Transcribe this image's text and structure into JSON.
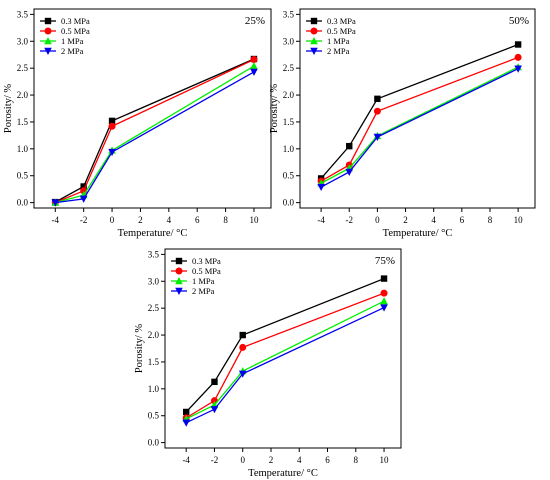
{
  "chart_data": [
    {
      "type": "line",
      "panel_label": "25%",
      "xlabel": "Temperature/ °C",
      "ylabel": "Porosity/ %",
      "x": [
        -4,
        -2,
        0,
        10
      ],
      "x_ticks": [
        "-4",
        "-2",
        "0",
        "2",
        "4",
        "6",
        "8",
        "10"
      ],
      "y_ticks": [
        "0.0",
        "0.5",
        "1.0",
        "1.5",
        "2.0",
        "2.5",
        "3.0",
        "3.5"
      ],
      "xlim": [
        -5.5,
        11.2
      ],
      "ylim": [
        -0.1,
        3.6
      ],
      "legend_position": "top-left",
      "series": [
        {
          "name": "0.3 MPa",
          "values": [
            0.01,
            0.3,
            1.52,
            2.67
          ],
          "color": "#000000",
          "marker": "square"
        },
        {
          "name": "0.5 MPa",
          "values": [
            0.0,
            0.22,
            1.42,
            2.66
          ],
          "color": "#ff0000",
          "marker": "circle"
        },
        {
          "name": "1 MPa",
          "values": [
            0.0,
            0.14,
            0.97,
            2.54
          ],
          "color": "#00ee00",
          "marker": "triangle-up"
        },
        {
          "name": "2 MPa",
          "values": [
            0.0,
            0.07,
            0.94,
            2.43
          ],
          "color": "#0000ee",
          "marker": "triangle-down"
        }
      ]
    },
    {
      "type": "line",
      "panel_label": "50%",
      "xlabel": "Temperature/ °C",
      "ylabel": "Porosity/ %",
      "x": [
        -4,
        -2,
        0,
        10
      ],
      "x_ticks": [
        "-4",
        "-2",
        "0",
        "2",
        "4",
        "6",
        "8",
        "10"
      ],
      "y_ticks": [
        "0.0",
        "0.5",
        "1.0",
        "1.5",
        "2.0",
        "2.5",
        "3.0",
        "3.5"
      ],
      "xlim": [
        -5.5,
        11.2
      ],
      "ylim": [
        -0.1,
        3.6
      ],
      "legend_position": "top-left",
      "series": [
        {
          "name": "0.3 MPa",
          "values": [
            0.45,
            1.05,
            1.93,
            2.94
          ],
          "color": "#000000",
          "marker": "square"
        },
        {
          "name": "0.5 MPa",
          "values": [
            0.4,
            0.7,
            1.7,
            2.7
          ],
          "color": "#ff0000",
          "marker": "circle"
        },
        {
          "name": "1 MPa",
          "values": [
            0.36,
            0.64,
            1.24,
            2.52
          ],
          "color": "#00ee00",
          "marker": "triangle-up"
        },
        {
          "name": "2 MPa",
          "values": [
            0.29,
            0.57,
            1.22,
            2.49
          ],
          "color": "#0000ee",
          "marker": "triangle-down"
        }
      ]
    },
    {
      "type": "line",
      "panel_label": "75%",
      "xlabel": "Temperature/ °C",
      "ylabel": "Porosity/ %",
      "x": [
        -4,
        -2,
        0,
        10
      ],
      "x_ticks": [
        "-4",
        "-2",
        "0",
        "2",
        "4",
        "6",
        "8",
        "10"
      ],
      "y_ticks": [
        "0.0",
        "0.5",
        "1.0",
        "1.5",
        "2.0",
        "2.5",
        "3.0",
        "3.5"
      ],
      "xlim": [
        -5.5,
        11.2
      ],
      "ylim": [
        -0.1,
        3.6
      ],
      "legend_position": "top-left",
      "series": [
        {
          "name": "0.3 MPa",
          "values": [
            0.57,
            1.13,
            2.0,
            3.05
          ],
          "color": "#000000",
          "marker": "square"
        },
        {
          "name": "0.5 MPa",
          "values": [
            0.46,
            0.78,
            1.77,
            2.78
          ],
          "color": "#ff0000",
          "marker": "circle"
        },
        {
          "name": "1 MPa",
          "values": [
            0.44,
            0.7,
            1.33,
            2.63
          ],
          "color": "#00ee00",
          "marker": "triangle-up"
        },
        {
          "name": "2 MPa",
          "values": [
            0.37,
            0.62,
            1.28,
            2.51
          ],
          "color": "#0000ee",
          "marker": "triangle-down"
        }
      ]
    }
  ]
}
